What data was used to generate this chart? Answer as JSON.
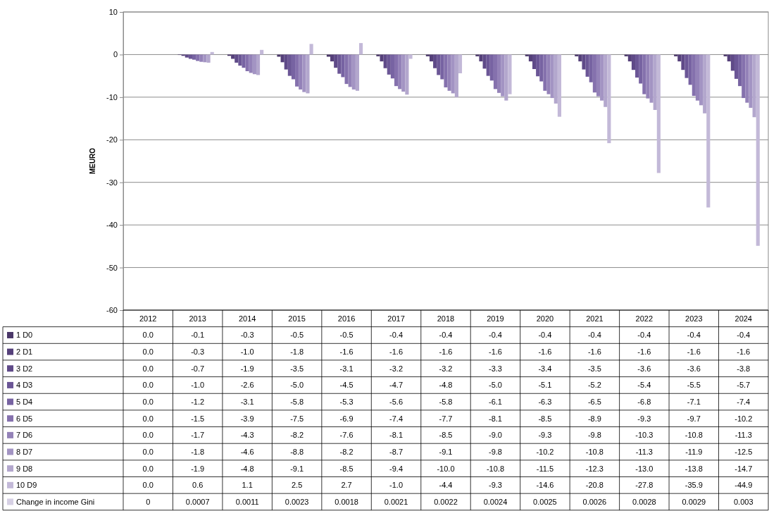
{
  "chart_data": {
    "type": "bar",
    "ylabel": "MEURO",
    "categories": [
      "2012",
      "2013",
      "2014",
      "2015",
      "2016",
      "2017",
      "2018",
      "2019",
      "2020",
      "2021",
      "2022",
      "2023",
      "2024"
    ],
    "ylim": [
      -60,
      10
    ],
    "yticks": [
      -60,
      -50,
      -40,
      -30,
      -20,
      -10,
      0,
      10
    ],
    "grid": "y",
    "legend": "bottom",
    "series": [
      {
        "name": "1 D0",
        "color": "#4b3869",
        "values": [
          0,
          -0.1,
          -0.3,
          -0.5,
          -0.5,
          -0.4,
          -0.4,
          -0.4,
          -0.4,
          -0.4,
          -0.4,
          -0.4,
          -0.4
        ],
        "value_labels": [
          "0.0",
          "-0.1",
          "-0.3",
          "-0.5",
          "-0.5",
          "-0.4",
          "-0.4",
          "-0.4",
          "-0.4",
          "-0.4",
          "-0.4",
          "-0.4",
          "-0.4"
        ]
      },
      {
        "name": "2 D1",
        "color": "#55407a",
        "values": [
          0,
          -0.3,
          -1.0,
          -1.8,
          -1.6,
          -1.6,
          -1.6,
          -1.6,
          -1.6,
          -1.6,
          -1.6,
          -1.6,
          -1.6
        ],
        "value_labels": [
          "0.0",
          "-0.3",
          "-1.0",
          "-1.8",
          "-1.6",
          "-1.6",
          "-1.6",
          "-1.6",
          "-1.6",
          "-1.6",
          "-1.6",
          "-1.6",
          "-1.6"
        ]
      },
      {
        "name": "3 D2",
        "color": "#5f4a88",
        "values": [
          0,
          -0.7,
          -1.9,
          -3.5,
          -3.1,
          -3.2,
          -3.2,
          -3.3,
          -3.4,
          -3.5,
          -3.6,
          -3.6,
          -3.8
        ],
        "value_labels": [
          "0.0",
          "-0.7",
          "-1.9",
          "-3.5",
          "-3.1",
          "-3.2",
          "-3.2",
          "-3.3",
          "-3.4",
          "-3.5",
          "-3.6",
          "-3.6",
          "-3.8"
        ]
      },
      {
        "name": "4 D3",
        "color": "#6b5696",
        "values": [
          0,
          -1.0,
          -2.6,
          -5.0,
          -4.5,
          -4.7,
          -4.8,
          -5.0,
          -5.1,
          -5.2,
          -5.4,
          -5.5,
          -5.7
        ],
        "value_labels": [
          "0.0",
          "-1.0",
          "-2.6",
          "-5.0",
          "-4.5",
          "-4.7",
          "-4.8",
          "-5.0",
          "-5.1",
          "-5.2",
          "-5.4",
          "-5.5",
          "-5.7"
        ]
      },
      {
        "name": "5 D4",
        "color": "#7763a2",
        "values": [
          0,
          -1.2,
          -3.1,
          -5.8,
          -5.3,
          -5.6,
          -5.8,
          -6.1,
          -6.3,
          -6.5,
          -6.8,
          -7.1,
          -7.4
        ],
        "value_labels": [
          "0.0",
          "-1.2",
          "-3.1",
          "-5.8",
          "-5.3",
          "-5.6",
          "-5.8",
          "-6.1",
          "-6.3",
          "-6.5",
          "-6.8",
          "-7.1",
          "-7.4"
        ]
      },
      {
        "name": "6 D5",
        "color": "#8571ad",
        "values": [
          0,
          -1.5,
          -3.9,
          -7.5,
          -6.9,
          -7.4,
          -7.7,
          -8.1,
          -8.5,
          -8.9,
          -9.3,
          -9.7,
          -10.2
        ],
        "value_labels": [
          "0.0",
          "-1.5",
          "-3.9",
          "-7.5",
          "-6.9",
          "-7.4",
          "-7.7",
          "-8.1",
          "-8.5",
          "-8.9",
          "-9.3",
          "-9.7",
          "-10.2"
        ]
      },
      {
        "name": "7 D6",
        "color": "#9482b8",
        "values": [
          0,
          -1.7,
          -4.3,
          -8.2,
          -7.6,
          -8.1,
          -8.5,
          -9.0,
          -9.3,
          -9.8,
          -10.3,
          -10.8,
          -11.3
        ],
        "value_labels": [
          "0.0",
          "-1.7",
          "-4.3",
          "-8.2",
          "-7.6",
          "-8.1",
          "-8.5",
          "-9.0",
          "-9.3",
          "-9.8",
          "-10.3",
          "-10.8",
          "-11.3"
        ]
      },
      {
        "name": "8 D7",
        "color": "#a394c3",
        "values": [
          0,
          -1.8,
          -4.6,
          -8.8,
          -8.2,
          -8.7,
          -9.1,
          -9.8,
          -10.2,
          -10.8,
          -11.3,
          -11.9,
          -12.5
        ],
        "value_labels": [
          "0.0",
          "-1.8",
          "-4.6",
          "-8.8",
          "-8.2",
          "-8.7",
          "-9.1",
          "-9.8",
          "-10.2",
          "-10.8",
          "-11.3",
          "-11.9",
          "-12.5"
        ]
      },
      {
        "name": "9 D8",
        "color": "#b3a7cd",
        "values": [
          0,
          -1.9,
          -4.8,
          -9.1,
          -8.5,
          -9.4,
          -10.0,
          -10.8,
          -11.5,
          -12.3,
          -13.0,
          -13.8,
          -14.7
        ],
        "value_labels": [
          "0.0",
          "-1.9",
          "-4.8",
          "-9.1",
          "-8.5",
          "-9.4",
          "-10.0",
          "-10.8",
          "-11.5",
          "-12.3",
          "-13.0",
          "-13.8",
          "-14.7"
        ]
      },
      {
        "name": "10 D9",
        "color": "#c3b9d8",
        "values": [
          0,
          0.6,
          1.1,
          2.5,
          2.7,
          -1.0,
          -4.4,
          -9.3,
          -14.6,
          -20.8,
          -27.8,
          -35.9,
          -44.9
        ],
        "value_labels": [
          "0.0",
          "0.6",
          "1.1",
          "2.5",
          "2.7",
          "-1.0",
          "-4.4",
          "-9.3",
          "-14.6",
          "-20.8",
          "-27.8",
          "-35.9",
          "-44.9"
        ]
      },
      {
        "name": "Change in  income Gini",
        "color": "#d6d0e4",
        "values": [
          0,
          0.0007,
          0.0011,
          0.0023,
          0.0018,
          0.0021,
          0.0022,
          0.0024,
          0.0025,
          0.0026,
          0.0028,
          0.0029,
          0.003
        ],
        "value_labels": [
          "0",
          "0.0007",
          "0.0011",
          "0.0023",
          "0.0018",
          "0.0021",
          "0.0022",
          "0.0024",
          "0.0025",
          "0.0026",
          "0.0028",
          "0.0029",
          "0.003"
        ]
      }
    ]
  }
}
